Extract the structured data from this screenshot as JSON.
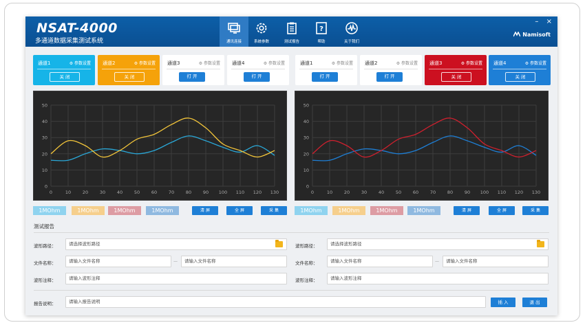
{
  "app": {
    "title": "NSAT-4000",
    "subtitle": "多通道数据采集测试系统",
    "brand": "Namisoft",
    "minimize": "–",
    "close": "×"
  },
  "nav": [
    {
      "label": "通讯连接",
      "icon": "monitor-icon",
      "active": true
    },
    {
      "label": "系统参数",
      "icon": "gear-icon",
      "active": false
    },
    {
      "label": "测试报告",
      "icon": "clipboard-icon",
      "active": false
    },
    {
      "label": "帮助",
      "icon": "help-icon",
      "active": false
    },
    {
      "label": "关于我们",
      "icon": "pulse-icon",
      "active": false
    }
  ],
  "left_channels": [
    {
      "name": "通道1",
      "settings": "参数设置",
      "button": "关 闭",
      "state": "on",
      "color": "#16b4e8"
    },
    {
      "name": "通道2",
      "settings": "参数设置",
      "button": "关 闭",
      "state": "on",
      "color": "#f5a20a"
    },
    {
      "name": "通道3",
      "settings": "参数设置",
      "button": "打 开",
      "state": "off",
      "color": "#ffffff"
    },
    {
      "name": "通道4",
      "settings": "参数设置",
      "button": "打 开",
      "state": "off",
      "color": "#ffffff"
    }
  ],
  "right_channels": [
    {
      "name": "通道1",
      "settings": "参数设置",
      "button": "打 开",
      "state": "off",
      "color": "#ffffff"
    },
    {
      "name": "通道2",
      "settings": "参数设置",
      "button": "打 开",
      "state": "off",
      "color": "#ffffff"
    },
    {
      "name": "通道3",
      "settings": "参数设置",
      "button": "关 闭",
      "state": "on",
      "color": "#cc1020"
    },
    {
      "name": "通道4",
      "settings": "参数设置",
      "button": "关 闭",
      "state": "on",
      "color": "#1e7fd6"
    }
  ],
  "impedance_tags": [
    {
      "label": "1MOhm",
      "color": "#8fd3ef"
    },
    {
      "label": "1MOhm",
      "color": "#f6cf8c"
    },
    {
      "label": "1MOhm",
      "color": "#dd9ca3"
    },
    {
      "label": "1MOhm",
      "color": "#8fb9e0"
    }
  ],
  "chart_buttons": {
    "clear": "清 屏",
    "fullscreen": "全 屏",
    "acquire": "采 集"
  },
  "chart_data": [
    {
      "type": "line",
      "xlim": [
        0,
        130
      ],
      "ylim": [
        0,
        50
      ],
      "x_ticks": [
        0,
        10,
        20,
        30,
        40,
        50,
        60,
        70,
        80,
        90,
        100,
        110,
        120,
        130
      ],
      "y_ticks": [
        0,
        10,
        20,
        30,
        40,
        50
      ],
      "grid": true,
      "series": [
        {
          "color": "#2aa8d8",
          "x": [
            0,
            10,
            20,
            30,
            40,
            50,
            60,
            70,
            80,
            90,
            100,
            110,
            120,
            130
          ],
          "y": [
            16,
            16,
            20,
            23,
            22,
            20,
            22,
            27,
            31,
            28,
            24,
            21,
            25,
            19
          ]
        },
        {
          "color": "#f3c53a",
          "x": [
            0,
            10,
            20,
            30,
            40,
            50,
            60,
            70,
            80,
            90,
            100,
            110,
            120,
            130
          ],
          "y": [
            20,
            28,
            25,
            18,
            22,
            29,
            32,
            38,
            42,
            36,
            26,
            22,
            18,
            22
          ]
        }
      ]
    },
    {
      "type": "line",
      "xlim": [
        0,
        130
      ],
      "ylim": [
        0,
        50
      ],
      "x_ticks": [
        0,
        10,
        20,
        30,
        40,
        50,
        60,
        70,
        80,
        90,
        100,
        110,
        120,
        130
      ],
      "y_ticks": [
        0,
        10,
        20,
        30,
        40,
        50
      ],
      "grid": true,
      "series": [
        {
          "color": "#1e7fd6",
          "x": [
            0,
            10,
            20,
            30,
            40,
            50,
            60,
            70,
            80,
            90,
            100,
            110,
            120,
            130
          ],
          "y": [
            16,
            16,
            20,
            23,
            22,
            20,
            22,
            27,
            31,
            28,
            24,
            21,
            25,
            19
          ]
        },
        {
          "color": "#d0202e",
          "x": [
            0,
            10,
            20,
            30,
            40,
            50,
            60,
            70,
            80,
            90,
            100,
            110,
            120,
            130
          ],
          "y": [
            20,
            28,
            25,
            18,
            22,
            29,
            32,
            38,
            42,
            36,
            26,
            22,
            18,
            22
          ]
        }
      ]
    }
  ],
  "report": {
    "heading": "测试报告",
    "left": {
      "path_label": "波形路径：",
      "path_placeholder": "请选择波形路径",
      "file_label": "文件名称：",
      "file_placeholder_1": "请输入文件名称",
      "file_separator": "—",
      "file_placeholder_2": "请输入文件名称",
      "note_label": "波形注释：",
      "note_placeholder": "请输入波形注释"
    },
    "right": {
      "path_label": "波形路径：",
      "path_placeholder": "请选择波形路径",
      "file_label": "文件名称：",
      "file_placeholder_1": "请输入文件名称",
      "file_separator": "—",
      "file_placeholder_2": "请输入文件名称",
      "note_label": "波形注释：",
      "note_placeholder": "请输入波形注释"
    },
    "desc_label": "报告说明：",
    "desc_placeholder": "请输入报告说明",
    "insert_button": "插 入",
    "exit_button": "退 出"
  }
}
